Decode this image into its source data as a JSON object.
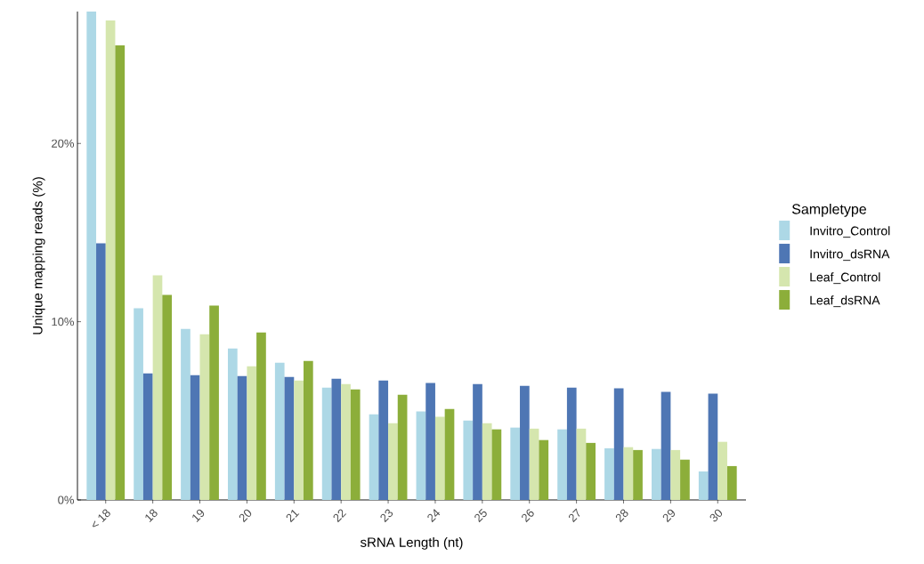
{
  "chart_data": {
    "type": "bar",
    "xlabel": "sRNA Length (nt)",
    "ylabel": "Unique mapping reads (%)",
    "legend_title": "Sampletype",
    "legend": "right",
    "categories": [
      "< 18",
      "18",
      "19",
      "20",
      "21",
      "22",
      "23",
      "24",
      "25",
      "26",
      "27",
      "28",
      "29",
      "30"
    ],
    "ylim": [
      0,
      27.4
    ],
    "yticks": [
      {
        "value": 0,
        "label": "0%"
      },
      {
        "value": 10,
        "label": "10%"
      },
      {
        "value": 20,
        "label": "20%"
      }
    ],
    "series": [
      {
        "name": "Invitro_Control",
        "color": "#add8e6",
        "values": [
          27.4,
          10.75,
          9.6,
          8.5,
          7.7,
          6.3,
          4.8,
          4.96,
          4.46,
          4.06,
          3.96,
          2.9,
          2.86,
          1.6
        ]
      },
      {
        "name": "Invitro_dsRNA",
        "color": "#4e76b4",
        "values": [
          14.4,
          7.1,
          7.0,
          6.95,
          6.9,
          6.8,
          6.7,
          6.56,
          6.5,
          6.4,
          6.3,
          6.26,
          6.06,
          5.96
        ]
      },
      {
        "name": "Leaf_Control",
        "color": "#d5e6ae",
        "values": [
          26.9,
          12.6,
          9.3,
          7.5,
          6.7,
          6.5,
          4.3,
          4.66,
          4.3,
          4.0,
          4.0,
          2.96,
          2.8,
          3.26
        ]
      },
      {
        "name": "Leaf_dsRNA",
        "color": "#8cae3a",
        "values": [
          25.5,
          11.5,
          10.9,
          9.4,
          7.8,
          6.2,
          5.9,
          5.1,
          3.96,
          3.36,
          3.2,
          2.8,
          2.26,
          1.9
        ]
      }
    ]
  }
}
